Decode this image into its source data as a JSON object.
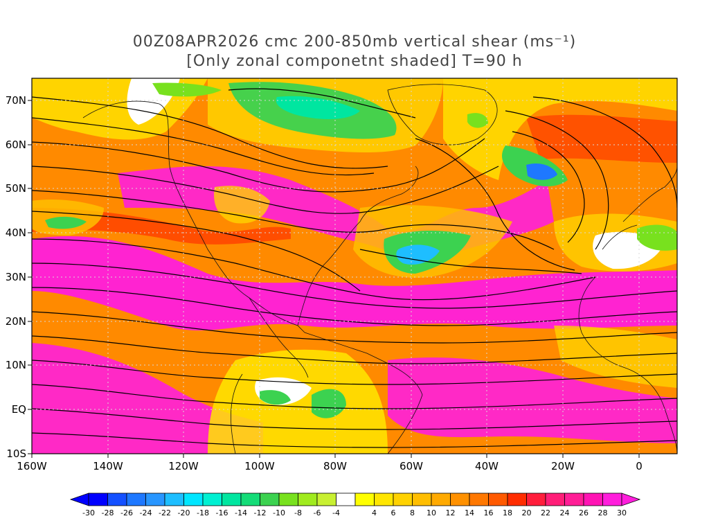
{
  "title_line1": "00Z08APR2026 cmc 200-850mb vertical shear (ms⁻¹)",
  "title_line2": "[Only zonal componetnt shaded] T=90 h",
  "map": {
    "lat_labels": [
      "70N",
      "60N",
      "50N",
      "40N",
      "30N",
      "20N",
      "10N",
      "EQ",
      "10S"
    ],
    "lon_labels": [
      "160W",
      "140W",
      "120W",
      "100W",
      "80W",
      "60W",
      "40W",
      "20W",
      "0"
    ],
    "extent": {
      "lon_min": -160,
      "lon_max": 10,
      "lat_min": -10,
      "lat_max": 75
    },
    "gridlines": "dotted"
  },
  "colorbar": {
    "labels": [
      "-30",
      "-28",
      "-26",
      "-24",
      "-22",
      "-20",
      "-18",
      "-16",
      "-14",
      "-12",
      "-10",
      "-8",
      "-6",
      "-4",
      "4",
      "6",
      "8",
      "10",
      "12",
      "14",
      "16",
      "18",
      "20",
      "22",
      "24",
      "26",
      "28",
      "30"
    ],
    "colors": [
      "#0000ff",
      "#1450ff",
      "#1e78ff",
      "#2896ff",
      "#1ebeff",
      "#00e6ff",
      "#00f0d2",
      "#00e6a0",
      "#14dc78",
      "#3cd250",
      "#78e11e",
      "#a0eb1e",
      "#c8f032",
      "#ffffff",
      "#ffff00",
      "#ffe600",
      "#ffd200",
      "#ffbe00",
      "#ffaa00",
      "#ff9100",
      "#ff7800",
      "#ff5a00",
      "#ff2d00",
      "#ff1e3c",
      "#ff1e78",
      "#ff1e96",
      "#ff14b4",
      "#ff1edc"
    ]
  }
}
